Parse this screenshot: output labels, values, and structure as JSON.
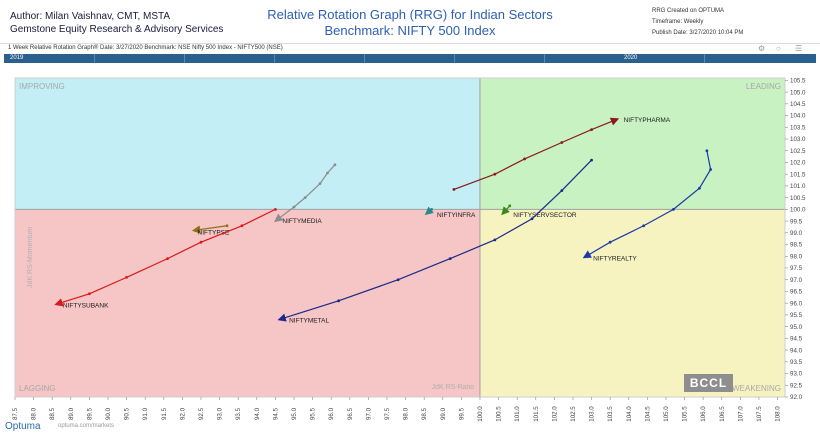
{
  "header": {
    "author": "Author: Milan Vaishnav, CMT, MSTA",
    "company": "Gemstone Equity Research & Advisory Services",
    "title_line1": "Relative Rotation Graph (RRG) for Indian Sectors",
    "title_line2": "Benchmark: NIFTY 500 Index",
    "created": "RRG Created on OPTUMA",
    "timeframe": "Timeframe: Weekly",
    "publish": "Publish Date: 3/27/2020 10:04 PM"
  },
  "subbar": {
    "text": "1 Week Relative Rotation Graph®    Date: 3/27/2020   Benchmark:  NSE Nifty 500 Index - NIFTY500 (NSE)"
  },
  "timeline": {
    "year_left": "2019",
    "year_right": "2020"
  },
  "watermark": "BCCL",
  "footer": {
    "logo": "Optuma",
    "url": "optuma.com/markets"
  },
  "chart_data": {
    "type": "scatter",
    "title": "Relative Rotation Graph (RRG) for Indian Sectors",
    "xlabel": "JdK RS-Ratio",
    "ylabel": "JdK RS-Momentum",
    "xlim": [
      87.5,
      108.2
    ],
    "ylim": [
      92.0,
      105.6
    ],
    "x_ticks": [
      "87.5",
      "88.0",
      "88.5",
      "89.0",
      "89.5",
      "90.0",
      "90.5",
      "91.0",
      "91.5",
      "92.0",
      "92.5",
      "93.0",
      "93.5",
      "94.0",
      "94.5",
      "95.0",
      "95.5",
      "96.0",
      "96.5",
      "97.0",
      "97.5",
      "98.0",
      "98.5",
      "99.0",
      "99.5",
      "100.0",
      "100.5",
      "101.0",
      "101.5",
      "102.0",
      "102.5",
      "103.0",
      "103.5",
      "104.0",
      "104.5",
      "105.0",
      "105.5",
      "106.0",
      "106.5",
      "107.0",
      "107.5",
      "108.0"
    ],
    "y_ticks": [
      "105.5",
      "105.0",
      "104.5",
      "104.0",
      "103.5",
      "103.0",
      "102.5",
      "102.0",
      "101.5",
      "101.0",
      "100.5",
      "100.0",
      "99.5",
      "99.0",
      "98.5",
      "98.0",
      "97.5",
      "97.0",
      "96.5",
      "96.0",
      "95.5",
      "95.0",
      "94.5",
      "94.0",
      "93.5",
      "93.0",
      "92.5",
      "92.0"
    ],
    "center": [
      100.0,
      100.0
    ],
    "quadrants": [
      {
        "name": "IMPROVING",
        "color": "#c3eef6",
        "position": "top-left"
      },
      {
        "name": "LEADING",
        "color": "#c9f2c3",
        "position": "top-right"
      },
      {
        "name": "LAGGING",
        "color": "#f6c5c5",
        "position": "bottom-left"
      },
      {
        "name": "WEAKENING",
        "color": "#f6f3c0",
        "position": "bottom-right"
      }
    ],
    "series": [
      {
        "name": "NIFTYPHARMA",
        "color": "#8b1a1a",
        "x": [
          99.3,
          100.4,
          101.2,
          102.2,
          103.0,
          103.7
        ],
        "y": [
          100.85,
          101.5,
          102.15,
          102.85,
          103.4,
          103.85
        ]
      },
      {
        "name": "NIFTYMEDIA",
        "color": "#8c8c8c",
        "x": [
          96.1,
          95.9,
          95.7,
          95.3,
          95.0,
          94.5
        ],
        "y": [
          101.9,
          101.55,
          101.1,
          100.5,
          100.1,
          99.5
        ]
      },
      {
        "name": "NIFTYINFRA",
        "color": "#2a8a8a",
        "x": [
          98.7,
          98.55
        ],
        "y": [
          100.0,
          99.8
        ]
      },
      {
        "name": "NIFTYSERVSECTOR",
        "color": "#3b8a1f",
        "x": [
          100.8,
          100.6
        ],
        "y": [
          100.15,
          99.8
        ]
      },
      {
        "name": "NIFTYPSE",
        "color": "#8a7010",
        "x": [
          93.2,
          92.3
        ],
        "y": [
          99.3,
          99.1
        ]
      },
      {
        "name": "NIFTYSUBANK",
        "color": "#d81a1a",
        "x": [
          94.5,
          93.6,
          92.5,
          91.6,
          90.5,
          89.5,
          88.6
        ],
        "y": [
          100.0,
          99.3,
          98.6,
          97.9,
          97.1,
          96.4,
          95.95
        ]
      },
      {
        "name": "NIFTYMETAL",
        "color": "#1a2a8a",
        "x": [
          103.0,
          102.2,
          101.4,
          100.4,
          99.2,
          97.8,
          96.2,
          94.6
        ],
        "y": [
          102.1,
          100.8,
          99.6,
          98.7,
          97.9,
          97.0,
          96.1,
          95.3
        ]
      },
      {
        "name": "NIFTYREALTY",
        "color": "#1a3aa8",
        "x": [
          106.1,
          106.2,
          105.9,
          105.2,
          104.4,
          103.5,
          102.8
        ],
        "y": [
          102.5,
          101.7,
          100.9,
          100.0,
          99.3,
          98.6,
          97.95
        ]
      }
    ]
  }
}
